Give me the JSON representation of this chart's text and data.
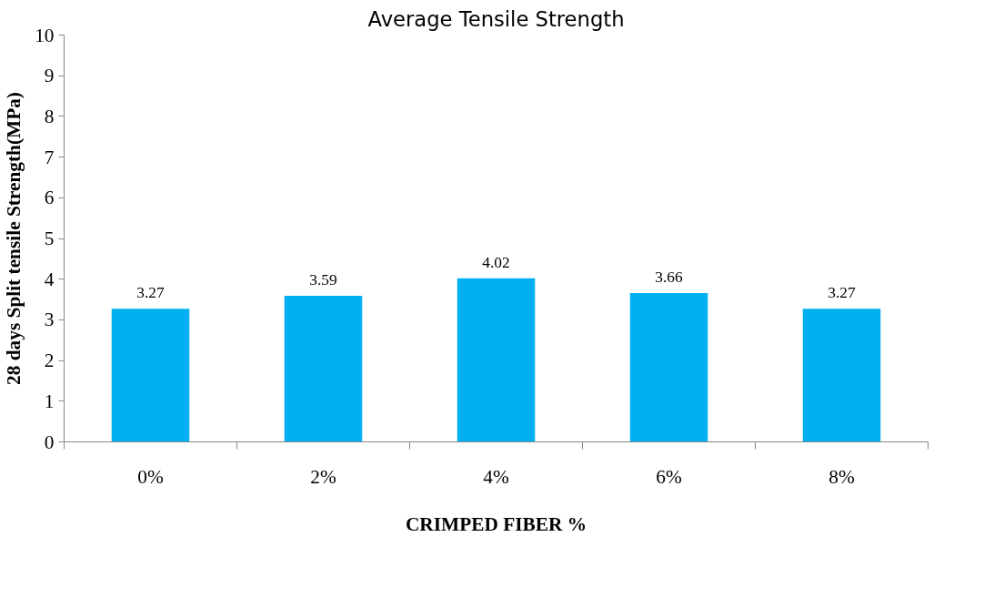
{
  "chart_data": {
    "type": "bar",
    "title": "Average Tensile Strength",
    "xlabel": "CRIMPED FIBER %",
    "ylabel": "28 days Split tensile Strength(MPa)",
    "categories": [
      "0%",
      "2%",
      "4%",
      "6%",
      "8%"
    ],
    "values": [
      3.27,
      3.59,
      4.02,
      3.66,
      3.27
    ],
    "color": "#00b0f0",
    "ylim": [
      0,
      10
    ],
    "yticks": [
      0,
      1,
      2,
      3,
      4,
      5,
      6,
      7,
      8,
      9,
      10
    ],
    "grid": false,
    "data_labels": true
  }
}
